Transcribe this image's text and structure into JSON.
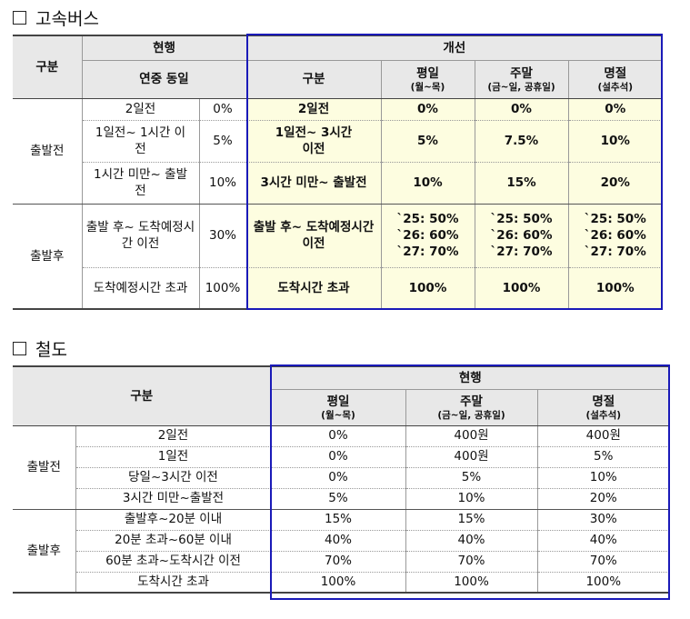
{
  "bus": {
    "section_title": "고속버스",
    "header": {
      "gubun": "구분",
      "current": "현행",
      "current_sub": "연중 동일",
      "improved": "개선",
      "improved_gubun": "구분",
      "weekday": "평일",
      "weekday_sub": "(월~목)",
      "weekend": "주말",
      "weekend_sub": "(금~일, 공휴일)",
      "holiday": "명절",
      "holiday_sub": "(설추석)"
    },
    "groups": {
      "before": "출발전",
      "after": "출발후"
    },
    "rows": [
      {
        "cur_label": "2일전",
        "cur_rate": "0%",
        "new_label": "2일전",
        "weekday": "0%",
        "weekend": "0%",
        "holiday": "0%"
      },
      {
        "cur_label": "1일전~ 1시간 이전",
        "cur_rate": "5%",
        "new_label": "1일전~ 3시간 이전",
        "weekday": "5%",
        "weekend": "7.5%",
        "holiday": "10%"
      },
      {
        "cur_label": "1시간 미만~ 출발전",
        "cur_rate": "10%",
        "new_label": "3시간 미만~ 출발전",
        "weekday": "10%",
        "weekend": "15%",
        "holiday": "20%"
      },
      {
        "cur_label": "출발 후~ 도착예정시간 이전",
        "cur_rate": "30%",
        "new_label": "출발 후~ 도착예정시간 이전",
        "weekday": [
          "`25: 50%",
          "`26: 60%",
          "`27: 70%"
        ],
        "weekend": [
          "`25: 50%",
          "`26: 60%",
          "`27: 70%"
        ],
        "holiday": [
          "`25: 50%",
          "`26: 60%",
          "`27: 70%"
        ]
      },
      {
        "cur_label": "도착예정시간 초과",
        "cur_rate": "100%",
        "new_label": "도착시간 초과",
        "weekday": "100%",
        "weekend": "100%",
        "holiday": "100%"
      }
    ]
  },
  "rail": {
    "section_title": "철도",
    "header": {
      "gubun": "구분",
      "current": "현행",
      "weekday": "평일",
      "weekday_sub": "(월~목)",
      "weekend": "주말",
      "weekend_sub": "(금~일, 공휴일)",
      "holiday": "명절",
      "holiday_sub": "(설추석)"
    },
    "groups": {
      "before": "출발전",
      "after": "출발후"
    },
    "rows": [
      {
        "label": "2일전",
        "weekday": "0%",
        "weekend": "400원",
        "holiday": "400원"
      },
      {
        "label": "1일전",
        "weekday": "0%",
        "weekend": "400원",
        "holiday": "5%"
      },
      {
        "label": "당일~3시간 이전",
        "weekday": "0%",
        "weekend": "5%",
        "holiday": "10%"
      },
      {
        "label": "3시간 미만~출발전",
        "weekday": "5%",
        "weekend": "10%",
        "holiday": "20%"
      },
      {
        "label": "출발후~20분 이내",
        "weekday": "15%",
        "weekend": "15%",
        "holiday": "30%"
      },
      {
        "label": "20분 초과~60분 이내",
        "weekday": "40%",
        "weekend": "40%",
        "holiday": "40%"
      },
      {
        "label": "60분 초과~도착시간 이전",
        "weekday": "70%",
        "weekend": "70%",
        "holiday": "70%"
      },
      {
        "label": "도착시간 초과",
        "weekday": "100%",
        "weekend": "100%",
        "holiday": "100%"
      }
    ]
  }
}
